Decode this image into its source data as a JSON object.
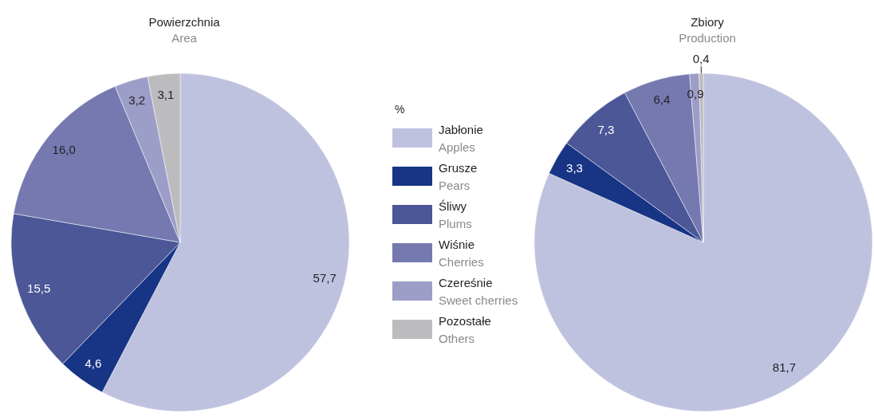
{
  "chart_data": {
    "type": "pie",
    "legend": "center",
    "legend_title": "%",
    "categories": [
      "Jabłonie\nApples",
      "Grusze\nPears",
      "Śliwy\nPlums",
      "Wiśnie\nCherries",
      "Czereśnie\nSweet cherries",
      "Pozostałe\nOthers"
    ],
    "colors": [
      "#bfc2df",
      "#173584",
      "#4b5796",
      "#7579b0",
      "#9c9ec8",
      "#bcbcbf"
    ],
    "series": [
      {
        "name": "Powierzchnia\nArea",
        "values": [
          57.7,
          4.6,
          15.5,
          16.0,
          3.2,
          3.1
        ],
        "value_labels": [
          "57,7",
          "4,6",
          "15,5",
          "16,0",
          "3,2",
          "3,1"
        ]
      },
      {
        "name": "Zbiory\nProduction",
        "values": [
          81.7,
          3.3,
          7.3,
          6.4,
          0.9,
          0.4
        ],
        "value_labels": [
          "81,7",
          "3,3",
          "7,3",
          "6,4",
          "0,9",
          "0,4"
        ]
      }
    ]
  }
}
